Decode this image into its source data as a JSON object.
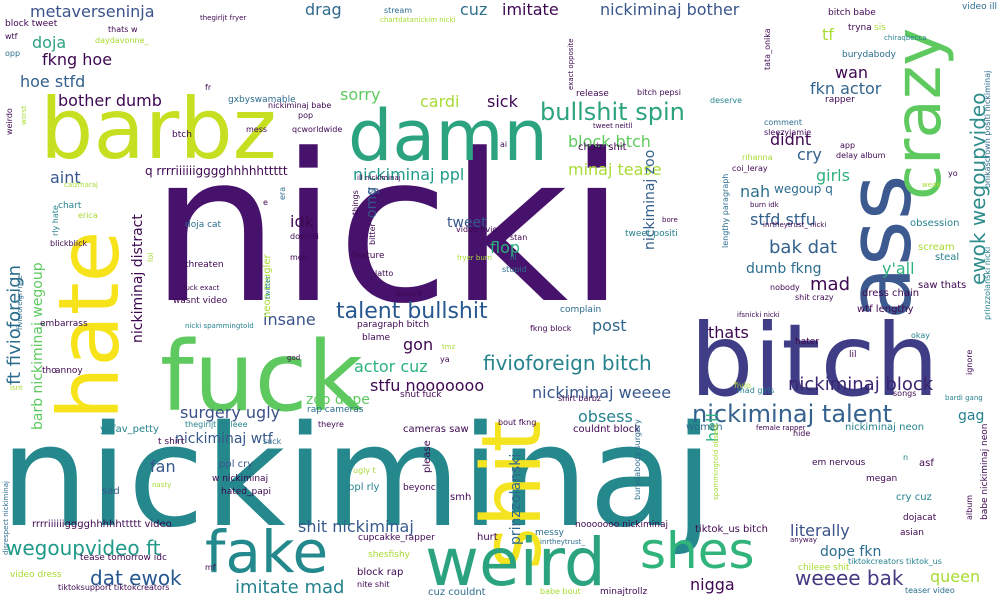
{
  "chart_data": {
    "type": "wordcloud",
    "title": "",
    "colormap": "viridis",
    "background": "#ffffff",
    "words": [
      {
        "text": "nicki",
        "weight": 100
      },
      {
        "text": "nickiminaj",
        "weight": 90
      },
      {
        "text": "bitch",
        "weight": 55
      },
      {
        "text": "ass",
        "weight": 48
      },
      {
        "text": "fuck",
        "weight": 45
      },
      {
        "text": "barbz",
        "weight": 42
      },
      {
        "text": "hate",
        "weight": 42
      },
      {
        "text": "damn",
        "weight": 38
      },
      {
        "text": "crazy",
        "weight": 36
      },
      {
        "text": "shit",
        "weight": 36
      },
      {
        "text": "weird",
        "weight": 33
      },
      {
        "text": "fake",
        "weight": 30
      },
      {
        "text": "shes",
        "weight": 26
      },
      {
        "text": "nickiminaj talent",
        "weight": 14
      },
      {
        "text": "bullshit spin",
        "weight": 14
      },
      {
        "text": "talent bullshit",
        "weight": 13
      },
      {
        "text": "fivioforeign bitch",
        "weight": 13
      },
      {
        "text": "ewok wegoupvideo",
        "weight": 13
      },
      {
        "text": "wegoupvideo ft",
        "weight": 12
      },
      {
        "text": "dat ewok",
        "weight": 12
      },
      {
        "text": "weeee bak",
        "weight": 12
      },
      {
        "text": "nickiminaj block",
        "weight": 12
      },
      {
        "text": "ft fivioforeign",
        "weight": 12
      },
      {
        "text": "bak dat",
        "weight": 12
      },
      {
        "text": "imitate mad",
        "weight": 11
      },
      {
        "text": "shit nickiminaj",
        "weight": 11
      },
      {
        "text": "nickiminaj weeee",
        "weight": 11
      },
      {
        "text": "surgery ugly",
        "weight": 11
      },
      {
        "text": "nickiminaj ppl",
        "weight": 11
      },
      {
        "text": "actor cuz",
        "weight": 11
      },
      {
        "text": "stfu nooooooo",
        "weight": 11
      },
      {
        "text": "zoo dope",
        "weight": 10
      },
      {
        "text": "dope fkn",
        "weight": 10
      },
      {
        "text": "literally",
        "weight": 11
      },
      {
        "text": "minaj tease",
        "weight": 10
      },
      {
        "text": "fkn actor",
        "weight": 11
      },
      {
        "text": "nickiminaj bother",
        "weight": 11
      },
      {
        "text": "imitate",
        "weight": 10
      },
      {
        "text": "metaverseninja",
        "weight": 10
      },
      {
        "text": "cuz",
        "weight": 10
      },
      {
        "text": "drag",
        "weight": 10
      },
      {
        "text": "fkng hoe",
        "weight": 10
      },
      {
        "text": "hoe stfd",
        "weight": 10
      },
      {
        "text": "doja",
        "weight": 10
      },
      {
        "text": "bother dumb",
        "weight": 10
      },
      {
        "text": "sorry",
        "weight": 10
      },
      {
        "text": "cardi",
        "weight": 10
      },
      {
        "text": "sick",
        "weight": 10
      },
      {
        "text": "block btch",
        "weight": 10
      },
      {
        "text": "flop",
        "weight": 10
      },
      {
        "text": "tweet",
        "weight": 10
      },
      {
        "text": "omg",
        "weight": 9
      },
      {
        "text": "idk",
        "weight": 10
      },
      {
        "text": "insane",
        "weight": 11
      },
      {
        "text": "mad",
        "weight": 12
      },
      {
        "text": "nah",
        "weight": 10
      },
      {
        "text": "cry",
        "weight": 10
      },
      {
        "text": "girls",
        "weight": 10
      },
      {
        "text": "didnt",
        "weight": 10
      },
      {
        "text": "stfd stfu",
        "weight": 10
      },
      {
        "text": "dumb fkng",
        "weight": 10
      },
      {
        "text": "y'all",
        "weight": 10
      },
      {
        "text": "thats",
        "weight": 10
      },
      {
        "text": "post",
        "weight": 10
      },
      {
        "text": "gon",
        "weight": 10
      },
      {
        "text": "obsess",
        "weight": 10
      },
      {
        "text": "hell",
        "weight": 10
      },
      {
        "text": "fan",
        "weight": 10
      },
      {
        "text": "queen",
        "weight": 10
      },
      {
        "text": "nigga",
        "weight": 10
      },
      {
        "text": "aint",
        "weight": 10
      },
      {
        "text": "wan",
        "weight": 10
      },
      {
        "text": "tf",
        "weight": 10
      },
      {
        "text": "nickiminaj distract",
        "weight": 9
      },
      {
        "text": "barb nickiminaj wegoup",
        "weight": 9
      },
      {
        "text": "prinzzolanski",
        "weight": 10
      },
      {
        "text": "nickiminaj zoo",
        "weight": 9
      },
      {
        "text": "nickiminaj wtf",
        "weight": 9
      },
      {
        "text": "gag",
        "weight": 8
      },
      {
        "text": "q rrrriiiiiigggghhhhhttttt",
        "weight": 8
      },
      {
        "text": "wegoup q",
        "weight": 7
      },
      {
        "text": "neon mugler",
        "weight": 6
      },
      {
        "text": "sad",
        "weight": 7
      },
      {
        "text": "ppl cry",
        "weight": 7
      },
      {
        "text": "ppl rly",
        "weight": 7
      },
      {
        "text": "smh",
        "weight": 6
      },
      {
        "text": "cry cuz",
        "weight": 7
      },
      {
        "text": "asf",
        "weight": 6
      },
      {
        "text": "women",
        "weight": 6
      },
      {
        "text": "hurt",
        "weight": 6
      },
      {
        "text": "block rap",
        "weight": 6
      },
      {
        "text": "cuz couldnt",
        "weight": 6
      },
      {
        "text": "tiktok_us bitch",
        "weight": 6
      },
      {
        "text": "nickiminaj neon",
        "weight": 6
      },
      {
        "text": "obsession",
        "weight": 6
      },
      {
        "text": "scream",
        "weight": 6
      },
      {
        "text": "steal",
        "weight": 6
      },
      {
        "text": "saw thats",
        "weight": 6
      },
      {
        "text": "dress chain",
        "weight": 6
      },
      {
        "text": "wtf lengthy",
        "weight": 6
      },
      {
        "text": "rrrriiiiiigggghhhhhttttt video",
        "weight": 6
      },
      {
        "text": "cupcakke_rapper",
        "weight": 5
      },
      {
        "text": "shesfishy",
        "weight": 5
      },
      {
        "text": "tease tomorrow idc",
        "weight": 5
      },
      {
        "text": "yafav_petty",
        "weight": 6
      },
      {
        "text": "couldnt block",
        "weight": 6
      },
      {
        "text": "cameras saw",
        "weight": 6
      },
      {
        "text": "rap cameras",
        "weight": 5
      },
      {
        "text": "shut fuck",
        "weight": 5
      },
      {
        "text": "t shirt",
        "weight": 5
      },
      {
        "text": "hated_papi",
        "weight": 5
      },
      {
        "text": "w nickiminaj",
        "weight": 5
      },
      {
        "text": "please",
        "weight": 6
      },
      {
        "text": "beyonc",
        "weight": 5
      },
      {
        "text": "dojacat",
        "weight": 5
      },
      {
        "text": "asian",
        "weight": 5
      },
      {
        "text": "megan",
        "weight": 5
      },
      {
        "text": "em nervous",
        "weight": 5
      },
      {
        "text": "nooooooo nickiminaj",
        "weight": 5
      },
      {
        "text": "messy",
        "weight": 5
      },
      {
        "text": "chileee shit",
        "weight": 5
      },
      {
        "text": "complain",
        "weight": 5
      },
      {
        "text": "paragraph bitch",
        "weight": 5
      },
      {
        "text": "blame",
        "weight": 5
      },
      {
        "text": "fkng block",
        "weight": 5
      },
      {
        "text": "nickiminaj babe",
        "weight": 5
      },
      {
        "text": "gxbyswamable",
        "weight": 5
      },
      {
        "text": "qcworldwide",
        "weight": 5
      },
      {
        "text": "release",
        "weight": 5
      },
      {
        "text": "bitch pepsi",
        "weight": 5
      },
      {
        "text": "deserve",
        "weight": 5
      },
      {
        "text": "comment",
        "weight": 5
      },
      {
        "text": "sleezyjamie",
        "weight": 5
      },
      {
        "text": "chain shit",
        "weight": 5
      },
      {
        "text": "tweet positi",
        "weight": 5
      },
      {
        "text": "burydabody",
        "weight": 5
      },
      {
        "text": "bitch babe",
        "weight": 5
      },
      {
        "text": "tryna",
        "weight": 5
      },
      {
        "text": "sis",
        "weight": 5
      },
      {
        "text": "rapper",
        "weight": 5
      },
      {
        "text": "video ill",
        "weight": 5
      },
      {
        "text": "stream",
        "weight": 5
      },
      {
        "text": "chartdatanickim nicki",
        "weight": 4
      },
      {
        "text": "block tweet",
        "weight": 5
      },
      {
        "text": "thats w",
        "weight": 5
      },
      {
        "text": "thegirljt fryer",
        "weight": 4
      },
      {
        "text": "daydavonne_",
        "weight": 4
      },
      {
        "text": "wtf",
        "weight": 5
      },
      {
        "text": "opp",
        "weight": 5
      },
      {
        "text": "worst",
        "weight": 5
      },
      {
        "text": "weirdo",
        "weight": 5
      },
      {
        "text": "chart",
        "weight": 5
      },
      {
        "text": "calzmaraj",
        "weight": 4
      },
      {
        "text": "erica",
        "weight": 5
      },
      {
        "text": "rly hate",
        "weight": 5
      },
      {
        "text": "blickblick",
        "weight": 5
      },
      {
        "text": "threaten",
        "weight": 5
      },
      {
        "text": "doja cat",
        "weight": 5
      },
      {
        "text": "fuck exact",
        "weight": 4
      },
      {
        "text": "wasnt video",
        "weight": 5
      },
      {
        "text": "embarrass",
        "weight": 5
      },
      {
        "text": "nicki spammingtold",
        "weight": 4
      },
      {
        "text": "tho",
        "weight": 5
      },
      {
        "text": "annoy",
        "weight": 5
      },
      {
        "text": "fivioforeign nite",
        "weight": 4
      },
      {
        "text": "isnt",
        "weight": 4
      },
      {
        "text": "disrespect nickiminaj",
        "weight": 4
      },
      {
        "text": "video dress",
        "weight": 5
      },
      {
        "text": "tiktoksupport tiktokcreators",
        "weight": 4
      },
      {
        "text": "nite shit",
        "weight": 4
      },
      {
        "text": "babe bout",
        "weight": 4
      },
      {
        "text": "minajtrollz",
        "weight": 5
      },
      {
        "text": "tiktokcreators tiktok_us",
        "weight": 4
      },
      {
        "text": "teaser video",
        "weight": 4
      },
      {
        "text": "babe nickiminaj neon",
        "weight": 5
      },
      {
        "text": "album",
        "weight": 5
      },
      {
        "text": "ignore",
        "weight": 5
      },
      {
        "text": "bardi gang",
        "weight": 4
      },
      {
        "text": "songs",
        "weight": 4
      },
      {
        "text": "okay",
        "weight": 5
      },
      {
        "text": "lil",
        "weight": 5
      },
      {
        "text": "hater",
        "weight": 5
      },
      {
        "text": "hide",
        "weight": 5
      },
      {
        "text": "female rapper",
        "weight": 4
      },
      {
        "text": "shirt barbz",
        "weight": 4
      },
      {
        "text": "bout fkng",
        "weight": 4
      },
      {
        "text": "theyre",
        "weight": 4
      },
      {
        "text": "thegirljt chileee",
        "weight": 4
      },
      {
        "text": "god",
        "weight": 4
      },
      {
        "text": "tmz",
        "weight": 4
      },
      {
        "text": "ugly t",
        "weight": 4
      },
      {
        "text": "nasty",
        "weight": 4
      },
      {
        "text": "suck",
        "weight": 4
      },
      {
        "text": "mf",
        "weight": 4
      },
      {
        "text": "anyway",
        "weight": 4
      },
      {
        "text": "inrtheytrust_",
        "weight": 4
      },
      {
        "text": "burydabody surgery",
        "weight": 4
      },
      {
        "text": "spammingtold obsess",
        "weight": 4
      },
      {
        "text": "fivio",
        "weight": 4
      },
      {
        "text": "mad girls",
        "weight": 4
      },
      {
        "text": "ifsnicki nicki",
        "weight": 4
      },
      {
        "text": "shit crazy",
        "weight": 4
      },
      {
        "text": "nobody",
        "weight": 4
      },
      {
        "text": "prinzzolanski nicki",
        "weight": 4
      },
      {
        "text": "onikascrown positi nickiminaj",
        "weight": 4
      },
      {
        "text": "weak",
        "weight": 4
      },
      {
        "text": "yo",
        "weight": 4
      },
      {
        "text": "inrtheytrust_ nicki",
        "weight": 4
      },
      {
        "text": "burn idk",
        "weight": 4
      },
      {
        "text": "coi_leray",
        "weight": 4
      },
      {
        "text": "rihanna",
        "weight": 4
      },
      {
        "text": "delay album",
        "weight": 4
      },
      {
        "text": "app",
        "weight": 4
      },
      {
        "text": "lengthy paragraph",
        "weight": 4
      },
      {
        "text": "tweet neitll",
        "weight": 4
      },
      {
        "text": "tata_onika",
        "weight": 4
      },
      {
        "text": "chiraqbecca",
        "weight": 4
      },
      {
        "text": "exact opposite",
        "weight": 4
      },
      {
        "text": "ill nickiminaj",
        "weight": 4
      },
      {
        "text": "stan",
        "weight": 4
      },
      {
        "text": "ill",
        "weight": 4
      },
      {
        "text": "stupid",
        "weight": 4
      },
      {
        "text": "fryer burn",
        "weight": 4
      },
      {
        "text": "video fivio",
        "weight": 4
      },
      {
        "text": "bore",
        "weight": 4
      },
      {
        "text": "doesnt",
        "weight": 4
      },
      {
        "text": "latto",
        "weight": 4
      },
      {
        "text": "feature",
        "weight": 4
      },
      {
        "text": "bitter",
        "weight": 4
      },
      {
        "text": "things",
        "weight": 4
      },
      {
        "text": "bc",
        "weight": 4
      },
      {
        "text": "doechii",
        "weight": 4
      },
      {
        "text": "men",
        "weight": 4
      },
      {
        "text": "twitter",
        "weight": 4
      },
      {
        "text": "era",
        "weight": 4
      },
      {
        "text": "e",
        "weight": 4
      },
      {
        "text": "lol",
        "weight": 4
      },
      {
        "text": "fr",
        "weight": 4
      },
      {
        "text": "btch",
        "weight": 4
      },
      {
        "text": "mess",
        "weight": 4
      },
      {
        "text": "pop",
        "weight": 4
      },
      {
        "text": "ai",
        "weight": 4
      },
      {
        "text": "ya",
        "weight": 4
      },
      {
        "text": "n",
        "weight": 4
      }
    ]
  }
}
